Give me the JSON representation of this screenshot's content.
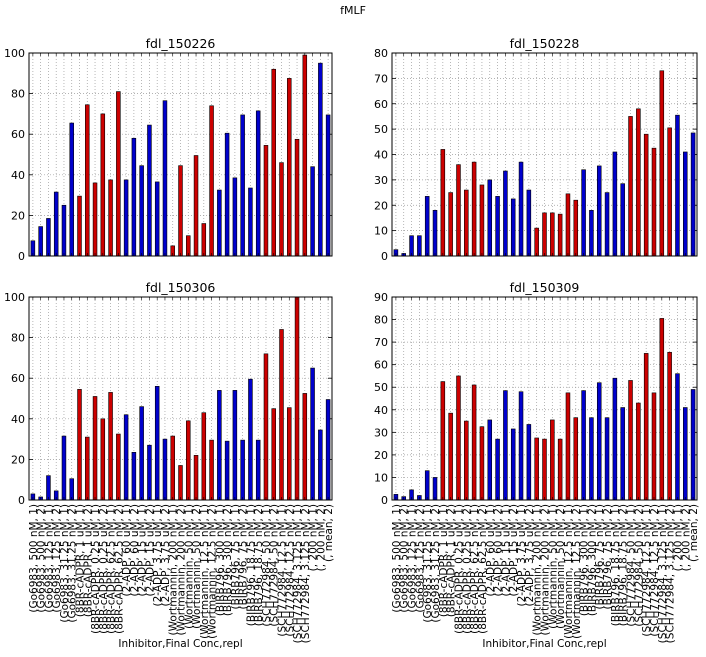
{
  "figure": {
    "suptitle": "fMLF"
  },
  "colors": {
    "blue": "#0000cc",
    "red": "#cc0000",
    "grid": "#9a9a9a"
  },
  "chart_data": [
    {
      "type": "bar",
      "title": "fdl_150226",
      "xlabel": "Inhibitor,Final Conc,repl",
      "ylabel": "",
      "ylim": [
        0,
        100
      ],
      "yticks": [
        0,
        20,
        40,
        60,
        80,
        100
      ],
      "grid": true,
      "show_xticklabels": false,
      "values": [
        7.5,
        14.5,
        18.5,
        31.5,
        25,
        65.5,
        29.5,
        74.5,
        36,
        70,
        37.5,
        81,
        37.5,
        58,
        44.5,
        64.5,
        36.5,
        76.5,
        5,
        44.5,
        10,
        49.5,
        16,
        74,
        32.5,
        60.5,
        38.5,
        69.5,
        33.5,
        71.5,
        54.5,
        92,
        46,
        87.5,
        57.5,
        99,
        44,
        95,
        69.5
      ],
      "colors": [
        "blue",
        "blue",
        "blue",
        "blue",
        "blue",
        "blue",
        "red",
        "red",
        "red",
        "red",
        "red",
        "red",
        "blue",
        "blue",
        "blue",
        "blue",
        "blue",
        "blue",
        "red",
        "red",
        "red",
        "red",
        "red",
        "red",
        "blue",
        "blue",
        "blue",
        "blue",
        "blue",
        "blue",
        "red",
        "red",
        "red",
        "red",
        "red",
        "red",
        "blue",
        "blue",
        "blue"
      ]
    },
    {
      "type": "bar",
      "title": "fdl_150228",
      "xlabel": "Inhibitor,Final Conc,repl",
      "ylabel": "",
      "ylim": [
        0,
        80
      ],
      "yticks": [
        0,
        10,
        20,
        30,
        40,
        50,
        60,
        70,
        80
      ],
      "grid": true,
      "show_xticklabels": false,
      "values": [
        2.5,
        1,
        8,
        8,
        23.5,
        18,
        42,
        25,
        36,
        26,
        37,
        28,
        30,
        23.5,
        33.5,
        22.5,
        37,
        26,
        11,
        17,
        17,
        16.5,
        24.5,
        22,
        34,
        18,
        35.5,
        25,
        41,
        28.5,
        55,
        58,
        48,
        42.5,
        73,
        50.5,
        55.5,
        41,
        48.5
      ],
      "colors": [
        "blue",
        "blue",
        "blue",
        "blue",
        "blue",
        "blue",
        "red",
        "red",
        "red",
        "red",
        "red",
        "red",
        "blue",
        "blue",
        "blue",
        "blue",
        "blue",
        "blue",
        "red",
        "red",
        "red",
        "red",
        "red",
        "red",
        "blue",
        "blue",
        "blue",
        "blue",
        "blue",
        "blue",
        "red",
        "red",
        "red",
        "red",
        "red",
        "red",
        "blue",
        "blue",
        "blue"
      ]
    },
    {
      "type": "bar",
      "title": "fdl_150306",
      "xlabel": "Inhibitor,Final Conc,repl",
      "ylabel": "",
      "ylim": [
        0,
        100
      ],
      "yticks": [
        0,
        20,
        40,
        60,
        80,
        100
      ],
      "grid": true,
      "show_xticklabels": true,
      "categories": [
        "(Go6983, 500 nM, 1)",
        "(Go6983, 500 nM, 2)",
        "(Go6983, 125 nM, 1)",
        "(Go6983, 125 nM, 2)",
        "(Go6983, 31.25 nM, 1)",
        "(Go6983, 31.25 nM, 2)",
        "(8BR-cADPR, 1 uM, 1)",
        "(8BR-cADPR, 1 uM, 2)",
        "(8BR-cADPR, 0.25 uM, 1)",
        "(8BR-cADPR, 0.25 uM, 2)",
        "(8BR-cADPR, 62.5 nM, 1)",
        "(8BR-cADPR, 62.5 nM, 2)",
        "(2-ADP, 60 uM, 1)",
        "(2-ADP, 60 uM, 2)",
        "(2-ADP, 15 uM, 1)",
        "(2-ADP, 15 uM, 2)",
        "(2-ADP, 3.75 uM, 1)",
        "(2-ADP, 3.75 uM, 2)",
        "(Wortmannin, 200 nM, 1)",
        "(Wortmannin, 200 nM, 2)",
        "(Wortmannin, 50 nM, 1)",
        "(Wortmannin, 50 nM, 2)",
        "(Wortmannin, 12.5 nM, 1)",
        "(Wortmannin, 12.5 nM, 2)",
        "(BIRB796, 300 nM, 1)",
        "(BIRB796, 300 nM, 2)",
        "(BIRB796, 75 nM, 1)",
        "(BIRB796, 75 nM, 2)",
        "(BIRB796, 18.75 nM, 1)",
        "(BIRB796, 18.75 nM, 2)",
        "(SCH772984, 50 nM, 1)",
        "(SCH772984, 50 nM, 2)",
        "(SCH772984, 12.5 nM, 1)",
        "(SCH772984, 12.5 nM, 2)",
        "(SCH772984, 3.125 nM, 1)",
        "(SCH772984, 3.125 nM, 2)",
        "(, 200 nM, 1)",
        "(, 200 nM, 2)",
        "(, mean, 2)"
      ],
      "values": [
        3,
        1.5,
        12,
        4.5,
        31.5,
        10.5,
        54.5,
        31,
        51,
        40,
        53,
        32.5,
        42,
        23.5,
        46,
        27,
        56,
        30,
        31.5,
        17,
        39,
        22,
        43,
        29.5,
        54,
        29,
        54,
        29.5,
        59.5,
        29.5,
        72,
        45,
        84,
        45.5,
        100,
        52.5,
        65,
        34.5,
        49.5
      ],
      "colors": [
        "blue",
        "blue",
        "blue",
        "blue",
        "blue",
        "blue",
        "red",
        "red",
        "red",
        "red",
        "red",
        "red",
        "blue",
        "blue",
        "blue",
        "blue",
        "blue",
        "blue",
        "red",
        "red",
        "red",
        "red",
        "red",
        "red",
        "blue",
        "blue",
        "blue",
        "blue",
        "blue",
        "blue",
        "red",
        "red",
        "red",
        "red",
        "red",
        "red",
        "blue",
        "blue",
        "blue"
      ]
    },
    {
      "type": "bar",
      "title": "fdl_150309",
      "xlabel": "Inhibitor,Final Conc,repl",
      "ylabel": "",
      "ylim": [
        0,
        90
      ],
      "yticks": [
        0,
        10,
        20,
        30,
        40,
        50,
        60,
        70,
        80,
        90
      ],
      "grid": true,
      "show_xticklabels": true,
      "categories": [
        "(Go6983, 500 nM, 1)",
        "(Go6983, 500 nM, 2)",
        "(Go6983, 125 nM, 1)",
        "(Go6983, 125 nM, 2)",
        "(Go6983, 31.25 nM, 1)",
        "(Go6983, 31.25 nM, 2)",
        "(8BR-cADPR, 1 uM, 1)",
        "(8BR-cADPR, 1 uM, 2)",
        "(8BR-cADPR, 0.25 uM, 1)",
        "(8BR-cADPR, 0.25 uM, 2)",
        "(8BR-cADPR, 62.5 nM, 1)",
        "(8BR-cADPR, 62.5 nM, 2)",
        "(2-ADP, 60 uM, 1)",
        "(2-ADP, 60 uM, 2)",
        "(2-ADP, 15 uM, 1)",
        "(2-ADP, 15 uM, 2)",
        "(2-ADP, 3.75 uM, 1)",
        "(2-ADP, 3.75 uM, 2)",
        "(Wortmannin, 200 nM, 1)",
        "(Wortmannin, 200 nM, 2)",
        "(Wortmannin, 50 nM, 1)",
        "(Wortmannin, 50 nM, 2)",
        "(Wortmannin, 12.5 nM, 1)",
        "(Wortmannin, 12.5 nM, 2)",
        "(BIRB796, 300 nM, 1)",
        "(BIRB796, 300 nM, 2)",
        "(BIRB796, 75 nM, 1)",
        "(BIRB796, 75 nM, 2)",
        "(BIRB796, 18.75 nM, 1)",
        "(BIRB796, 18.75 nM, 2)",
        "(SCH772984, 50 nM, 1)",
        "(SCH772984, 50 nM, 2)",
        "(SCH772984, 12.5 nM, 1)",
        "(SCH772984, 12.5 nM, 2)",
        "(SCH772984, 3.125 nM, 1)",
        "(SCH772984, 3.125 nM, 2)",
        "(, 200 nM, 1)",
        "(, 200 nM, 2)",
        "(, mean, 2)"
      ],
      "values": [
        2.5,
        1.5,
        4.5,
        2,
        13,
        10,
        52.5,
        38.5,
        55,
        35,
        51,
        32.5,
        35.5,
        27,
        48.5,
        31.5,
        48,
        33.5,
        27.5,
        27,
        35.5,
        27,
        47.5,
        36.5,
        48.5,
        36.5,
        52,
        36.5,
        54,
        41,
        53,
        43,
        65,
        47.5,
        80.5,
        65.5,
        56,
        41,
        49
      ],
      "colors": [
        "blue",
        "blue",
        "blue",
        "blue",
        "blue",
        "blue",
        "red",
        "red",
        "red",
        "red",
        "red",
        "red",
        "blue",
        "blue",
        "blue",
        "blue",
        "blue",
        "blue",
        "red",
        "red",
        "red",
        "red",
        "red",
        "red",
        "blue",
        "blue",
        "blue",
        "blue",
        "blue",
        "blue",
        "red",
        "red",
        "red",
        "red",
        "red",
        "red",
        "blue",
        "blue",
        "blue"
      ]
    }
  ]
}
